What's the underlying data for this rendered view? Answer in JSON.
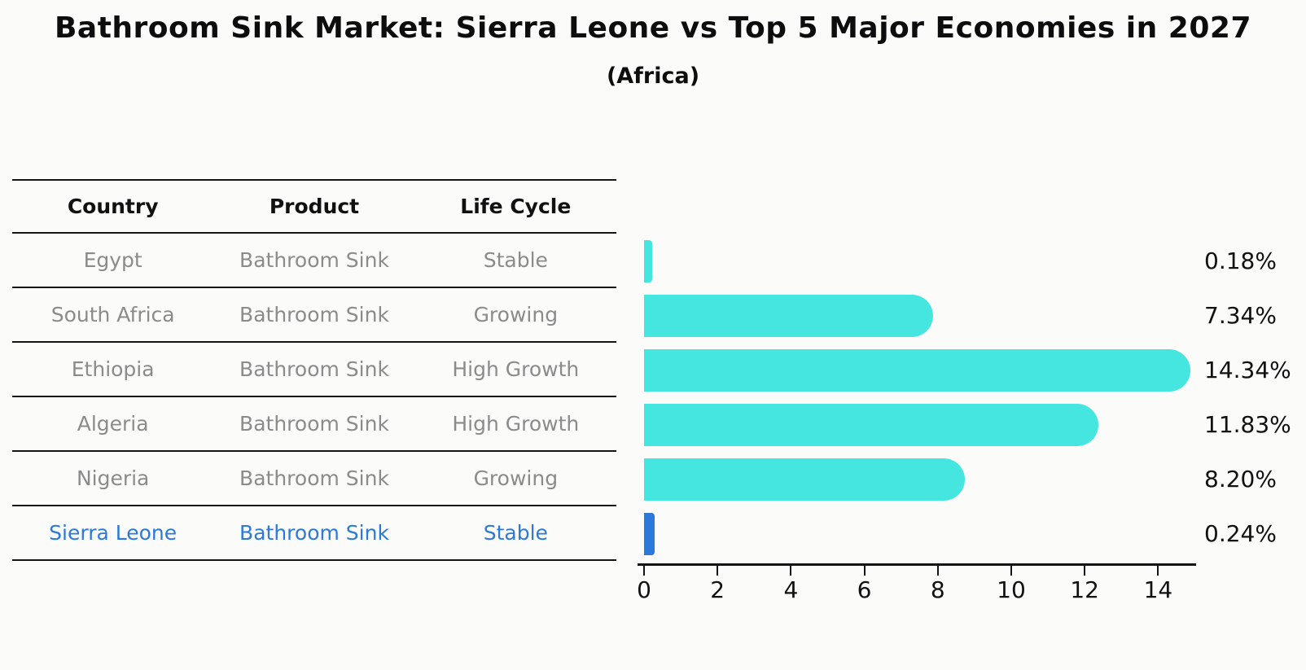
{
  "title": "Bathroom Sink Market: Sierra Leone vs Top 5 Major Economies in 2027",
  "subtitle": "(Africa)",
  "table": {
    "headers": [
      "Country",
      "Product",
      "Life Cycle"
    ],
    "rows": [
      {
        "country": "Egypt",
        "product": "Bathroom Sink",
        "life_cycle": "Stable",
        "highlight": false
      },
      {
        "country": "South Africa",
        "product": "Bathroom Sink",
        "life_cycle": "Growing",
        "highlight": false
      },
      {
        "country": "Ethiopia",
        "product": "Bathroom Sink",
        "life_cycle": "High Growth",
        "highlight": false
      },
      {
        "country": "Algeria",
        "product": "Bathroom Sink",
        "life_cycle": "High Growth",
        "highlight": false
      },
      {
        "country": "Nigeria",
        "product": "Bathroom Sink",
        "life_cycle": "Growing",
        "highlight": false
      },
      {
        "country": "Sierra Leone",
        "product": "Bathroom Sink",
        "life_cycle": "Stable",
        "highlight": true
      }
    ]
  },
  "chart_data": {
    "type": "bar",
    "orientation": "horizontal",
    "title": "Bathroom Sink Market: Sierra Leone vs Top 5 Major Economies in 2027",
    "subtitle": "(Africa)",
    "categories": [
      "Egypt",
      "South Africa",
      "Ethiopia",
      "Algeria",
      "Nigeria",
      "Sierra Leone"
    ],
    "values": [
      0.18,
      7.34,
      14.34,
      11.83,
      8.2,
      0.24
    ],
    "value_labels": [
      "0.18%",
      "7.34%",
      "14.34%",
      "11.83%",
      "8.20%",
      "0.24%"
    ],
    "x_ticks": [
      "0",
      "2",
      "4",
      "6",
      "8",
      "10",
      "12",
      "14"
    ],
    "xlim": [
      0,
      15.1
    ],
    "grid": false,
    "legend": false,
    "bar_color": "#45E6E0",
    "highlight_color": "#2B79D8",
    "highlight_index": 5
  },
  "colors": {
    "bar": "#45E6E0",
    "highlight": "#2B79D8",
    "muted_text": "#8B8B8B",
    "dark_text": "#111111",
    "line": "#141414",
    "background": "#FBFBF9"
  }
}
